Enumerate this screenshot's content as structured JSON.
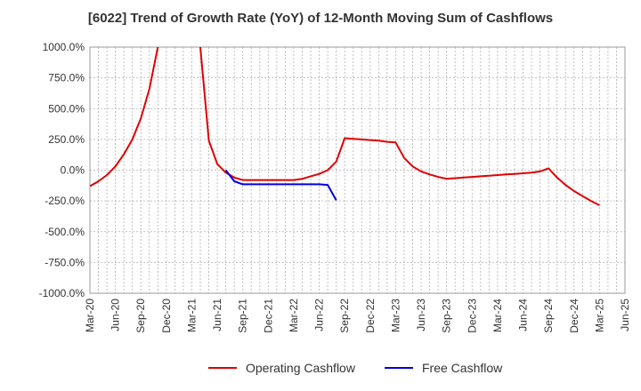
{
  "chart_data": {
    "type": "line",
    "title": "[6022]  Trend of Growth Rate (YoY) of 12-Month Moving Sum of Cashflows",
    "xlabel": "",
    "ylabel": "",
    "ylim": [
      -1000,
      1000
    ],
    "y_unit": "%",
    "y_ticks": [
      "1000.0%",
      "750.0%",
      "500.0%",
      "250.0%",
      "0.0%",
      "-250.0%",
      "-500.0%",
      "-750.0%",
      "-1000.0%"
    ],
    "y_tick_values": [
      1000,
      750,
      500,
      250,
      0,
      -250,
      -500,
      -750,
      -1000
    ],
    "x_ticks": [
      "Mar-20",
      "Jun-20",
      "Sep-20",
      "Dec-20",
      "Mar-21",
      "Jun-21",
      "Sep-21",
      "Dec-21",
      "Mar-22",
      "Jun-22",
      "Sep-22",
      "Dec-22",
      "Mar-23",
      "Jun-23",
      "Sep-23",
      "Dec-23",
      "Mar-24",
      "Jun-24",
      "Sep-24",
      "Dec-24",
      "Mar-25",
      "Jun-25"
    ],
    "xlim": [
      "2020-03",
      "2025-06"
    ],
    "grid": true,
    "legend_position": "bottom",
    "series": [
      {
        "name": "Operating Cashflow",
        "color": "#e00000",
        "points": [
          [
            "2020-03",
            -130
          ],
          [
            "2020-04",
            -90
          ],
          [
            "2020-05",
            -40
          ],
          [
            "2020-06",
            30
          ],
          [
            "2020-07",
            130
          ],
          [
            "2020-08",
            250
          ],
          [
            "2020-09",
            420
          ],
          [
            "2020-10",
            660
          ],
          [
            "2020-11",
            1000
          ],
          [
            "2020-12",
            null
          ],
          [
            "2021-01",
            null
          ],
          [
            "2021-02",
            null
          ],
          [
            "2021-03",
            null
          ],
          [
            "2021-04",
            1000
          ],
          [
            "2021-05",
            240
          ],
          [
            "2021-06",
            50
          ],
          [
            "2021-07",
            -20
          ],
          [
            "2021-08",
            -60
          ],
          [
            "2021-09",
            -80
          ],
          [
            "2021-10",
            -80
          ],
          [
            "2021-11",
            -80
          ],
          [
            "2021-12",
            -80
          ],
          [
            "2022-01",
            -80
          ],
          [
            "2022-02",
            -80
          ],
          [
            "2022-03",
            -80
          ],
          [
            "2022-04",
            -70
          ],
          [
            "2022-05",
            -50
          ],
          [
            "2022-06",
            -30
          ],
          [
            "2022-07",
            0
          ],
          [
            "2022-08",
            70
          ],
          [
            "2022-09",
            260
          ],
          [
            "2022-10",
            255
          ],
          [
            "2022-11",
            250
          ],
          [
            "2022-12",
            245
          ],
          [
            "2023-01",
            240
          ],
          [
            "2023-02",
            230
          ],
          [
            "2023-03",
            225
          ],
          [
            "2023-04",
            100
          ],
          [
            "2023-05",
            30
          ],
          [
            "2023-06",
            -10
          ],
          [
            "2023-07",
            -35
          ],
          [
            "2023-08",
            -55
          ],
          [
            "2023-09",
            -70
          ],
          [
            "2023-10",
            -65
          ],
          [
            "2023-11",
            -60
          ],
          [
            "2023-12",
            -55
          ],
          [
            "2024-01",
            -50
          ],
          [
            "2024-02",
            -45
          ],
          [
            "2024-03",
            -40
          ],
          [
            "2024-04",
            -35
          ],
          [
            "2024-05",
            -30
          ],
          [
            "2024-06",
            -25
          ],
          [
            "2024-07",
            -20
          ],
          [
            "2024-08",
            -10
          ],
          [
            "2024-09",
            15
          ],
          [
            "2024-10",
            -60
          ],
          [
            "2024-11",
            -120
          ],
          [
            "2024-12",
            -170
          ],
          [
            "2025-01",
            -210
          ],
          [
            "2025-02",
            -250
          ],
          [
            "2025-03",
            -285
          ]
        ]
      },
      {
        "name": "Free Cashflow",
        "color": "#0000e0",
        "points": [
          [
            "2021-07",
            0
          ],
          [
            "2021-08",
            -90
          ],
          [
            "2021-09",
            -115
          ],
          [
            "2021-10",
            -115
          ],
          [
            "2021-11",
            -115
          ],
          [
            "2021-12",
            -115
          ],
          [
            "2022-01",
            -115
          ],
          [
            "2022-02",
            -115
          ],
          [
            "2022-03",
            -115
          ],
          [
            "2022-04",
            -115
          ],
          [
            "2022-05",
            -115
          ],
          [
            "2022-06",
            -115
          ],
          [
            "2022-07",
            -120
          ],
          [
            "2022-08",
            -245
          ]
        ]
      }
    ]
  }
}
